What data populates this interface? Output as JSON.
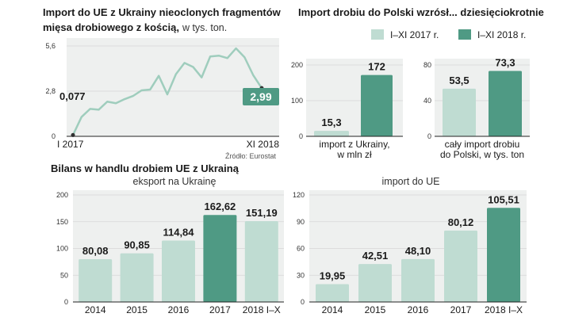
{
  "colors": {
    "light": "#bfdcd2",
    "dark": "#4f9a84",
    "line": "#9fcdbd",
    "panel": "#eef0ef",
    "grid": "#d6d6d6",
    "axis": "#222222"
  },
  "source": "Źródło: Eurostat",
  "chart_data": [
    {
      "type": "line",
      "title": "Import do UE z Ukrainy nieoclonych fragmentów",
      "subtitle": "mięsa drobiowego z kością,",
      "unit": "w tys. ton.",
      "x_start_label": "I 2017",
      "x_end_label": "XI 2018",
      "yticks": [
        "5,6",
        "2,8",
        "0"
      ],
      "ylim": [
        0,
        5.6
      ],
      "values": [
        0.077,
        1.2,
        1.7,
        1.65,
        2.15,
        2.05,
        2.3,
        2.5,
        2.85,
        2.9,
        3.75,
        2.6,
        3.85,
        4.55,
        4.3,
        3.65,
        4.95,
        5.0,
        4.85,
        5.45,
        4.9,
        3.8,
        2.99
      ],
      "start_label": "0,077",
      "end_label": "2,99"
    },
    {
      "type": "bar",
      "title": "Import drobiu do Polski wzrósł... dziesięciokrotnie",
      "legend": [
        "I–XI 2017 r.",
        "I–XI 2018 r."
      ],
      "groups": [
        {
          "name": "import z Ukrainy, w mln zł",
          "name_lines": [
            "import z Ukrainy,",
            "w mln zł"
          ],
          "yticks": [
            "200",
            "100",
            "0"
          ],
          "ylim": [
            0,
            200
          ],
          "values": [
            15.3,
            172
          ],
          "labels": [
            "15,3",
            "172"
          ]
        },
        {
          "name": "cały import drobiu do Polski, w tys. ton",
          "name_lines": [
            "cały import drobiu",
            "do Polski, w tys. ton"
          ],
          "yticks": [
            "80",
            "40",
            "0"
          ],
          "ylim": [
            0,
            80
          ],
          "values": [
            53.5,
            73.3
          ],
          "labels": [
            "53,5",
            "73,3"
          ]
        }
      ]
    },
    {
      "type": "bar",
      "title": "Bilans w handlu drobiem UE z Ukrainą",
      "subtitle": "eksport na Ukrainę",
      "categories": [
        "2014",
        "2015",
        "2016",
        "2017",
        "2018 I–X"
      ],
      "values": [
        80.08,
        90.85,
        114.84,
        162.62,
        151.19
      ],
      "labels": [
        "80,08",
        "90,85",
        "114,84",
        "162,62",
        "151,19"
      ],
      "highlight_index": 3,
      "yticks": [
        "200",
        "150",
        "100",
        "50",
        "0"
      ],
      "ylim": [
        0,
        200
      ]
    },
    {
      "type": "bar",
      "subtitle": "import do UE",
      "categories": [
        "2014",
        "2015",
        "2016",
        "2017",
        "2018 I–X"
      ],
      "values": [
        19.95,
        42.51,
        48.1,
        80.12,
        105.51
      ],
      "labels": [
        "19,95",
        "42,51",
        "48,10",
        "80,12",
        "105,51"
      ],
      "highlight_index": 4,
      "yticks": [
        "120",
        "90",
        "60",
        "30",
        "0"
      ],
      "ylim": [
        0,
        120
      ]
    }
  ]
}
